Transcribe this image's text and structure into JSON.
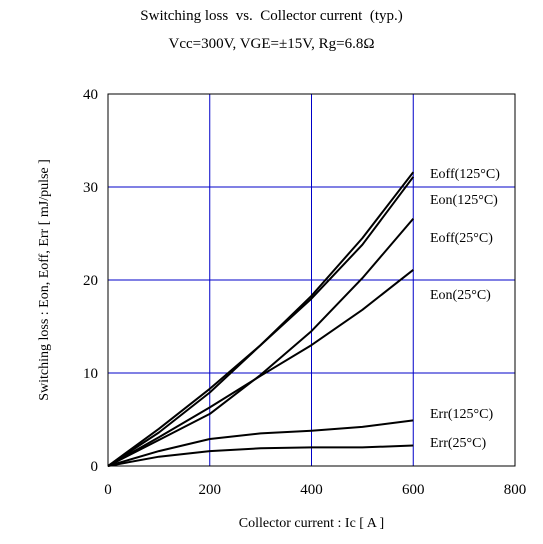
{
  "chart_data": {
    "type": "line",
    "title": "Switching loss  vs.  Collector current  (typ.)",
    "subtitle": "Vcc=300V, VGE=±15V, Rg=6.8Ω",
    "xlabel": "Collector current  :  Ic  [ A ]",
    "ylabel": "Switching loss  :  Eon, Eoff, Err  [ mJ/pulse ]",
    "xlim": [
      0,
      800
    ],
    "ylim": [
      0,
      40
    ],
    "x_ticks": [
      "0",
      "200",
      "400",
      "600",
      "800"
    ],
    "y_ticks": [
      "0",
      "10",
      "20",
      "30",
      "40"
    ],
    "grid": true,
    "grid_color": "#0000c8",
    "line_color": "#000000",
    "series": [
      {
        "name": "Eoff(125°C)",
        "x": [
          0,
          100,
          200,
          300,
          400,
          500,
          600
        ],
        "y": [
          0,
          4.0,
          8.3,
          13.0,
          18.3,
          24.5,
          31.6
        ]
      },
      {
        "name": "Eon(125°C)",
        "x": [
          0,
          100,
          200,
          300,
          400,
          500,
          600
        ],
        "y": [
          0,
          3.6,
          7.9,
          13.0,
          18.0,
          23.8,
          31.1
        ]
      },
      {
        "name": "Eoff(25°C)",
        "x": [
          0,
          100,
          200,
          300,
          400,
          500,
          600
        ],
        "y": [
          0,
          2.8,
          5.6,
          9.8,
          14.5,
          20.2,
          26.6
        ]
      },
      {
        "name": "Eon(25°C)",
        "x": [
          0,
          100,
          200,
          300,
          400,
          500,
          600
        ],
        "y": [
          0,
          3.1,
          6.3,
          9.7,
          13.0,
          16.8,
          21.1
        ]
      },
      {
        "name": "Err(125°C)",
        "x": [
          0,
          100,
          200,
          300,
          400,
          500,
          600
        ],
        "y": [
          0,
          1.6,
          2.9,
          3.5,
          3.8,
          4.2,
          4.9
        ]
      },
      {
        "name": "Err(25°C)",
        "x": [
          0,
          100,
          200,
          300,
          400,
          500,
          600
        ],
        "y": [
          0,
          1.0,
          1.6,
          1.9,
          2.0,
          2.0,
          2.2
        ]
      }
    ]
  }
}
